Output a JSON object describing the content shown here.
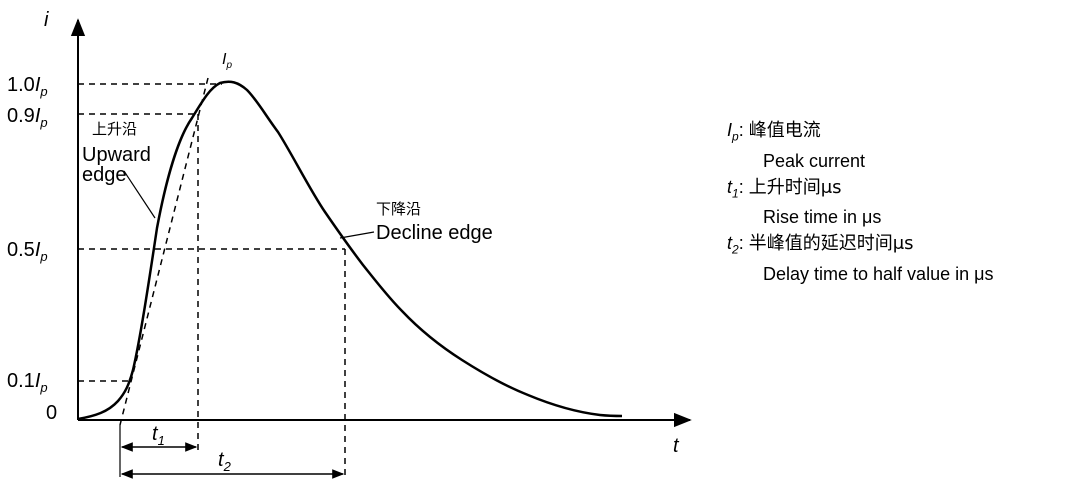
{
  "axes": {
    "y_label": "i",
    "x_label": "t",
    "y_ticks": [
      {
        "prefix": "1.0",
        "sym": "I",
        "sub": "p",
        "value": 1.0
      },
      {
        "prefix": "0.9",
        "sym": "I",
        "sub": "p",
        "value": 0.9
      },
      {
        "prefix": "0.5",
        "sym": "I",
        "sub": "p",
        "value": 0.5
      },
      {
        "prefix": "0.1",
        "sym": "I",
        "sub": "p",
        "value": 0.1
      },
      {
        "prefix": "0",
        "sym": "",
        "sub": "",
        "value": 0
      }
    ]
  },
  "peak_label": {
    "sym": "I",
    "sub": "p"
  },
  "upward_edge": {
    "cn": "上升沿",
    "en_line1": "Upward",
    "en_line2": "edge"
  },
  "decline_edge": {
    "cn": "下降沿",
    "en": "Decline edge"
  },
  "t1": {
    "sym": "t",
    "sub": "1"
  },
  "t2": {
    "sym": "t",
    "sub": "2"
  },
  "legend": [
    {
      "sym": "I",
      "sub": "p",
      "cn": "峰值电流",
      "en": "Peak current"
    },
    {
      "sym": "t",
      "sub": "1",
      "cn": "上升时间μs",
      "en": "Rise time in μs"
    },
    {
      "sym": "t",
      "sub": "2",
      "cn": "半峰值的延迟时间μs",
      "en": "Delay time to half value in μs"
    }
  ]
}
